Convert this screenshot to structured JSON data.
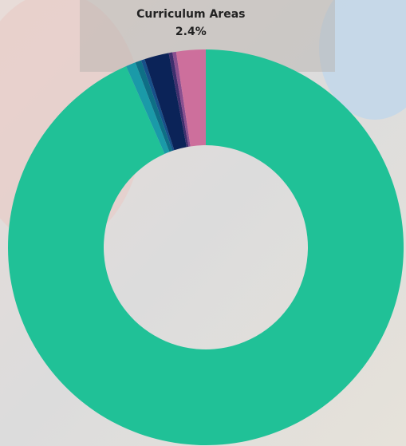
{
  "chart_data": {
    "type": "donut",
    "categories": [
      null,
      null,
      null,
      null,
      null,
      null,
      null,
      "Curriculum Areas"
    ],
    "values": [
      93.4,
      0.8,
      0.5,
      0.3,
      2.0,
      0.3,
      0.3,
      2.4
    ],
    "value_labels": [
      null,
      null,
      null,
      null,
      null,
      null,
      null,
      "2.4%"
    ],
    "colors": [
      "#20c197",
      "#1a9aa8",
      "#0e6f86",
      "#17508a",
      "#0b2358",
      "#3f2f6e",
      "#8a4f8f",
      "#cd6f9c"
    ]
  }
}
